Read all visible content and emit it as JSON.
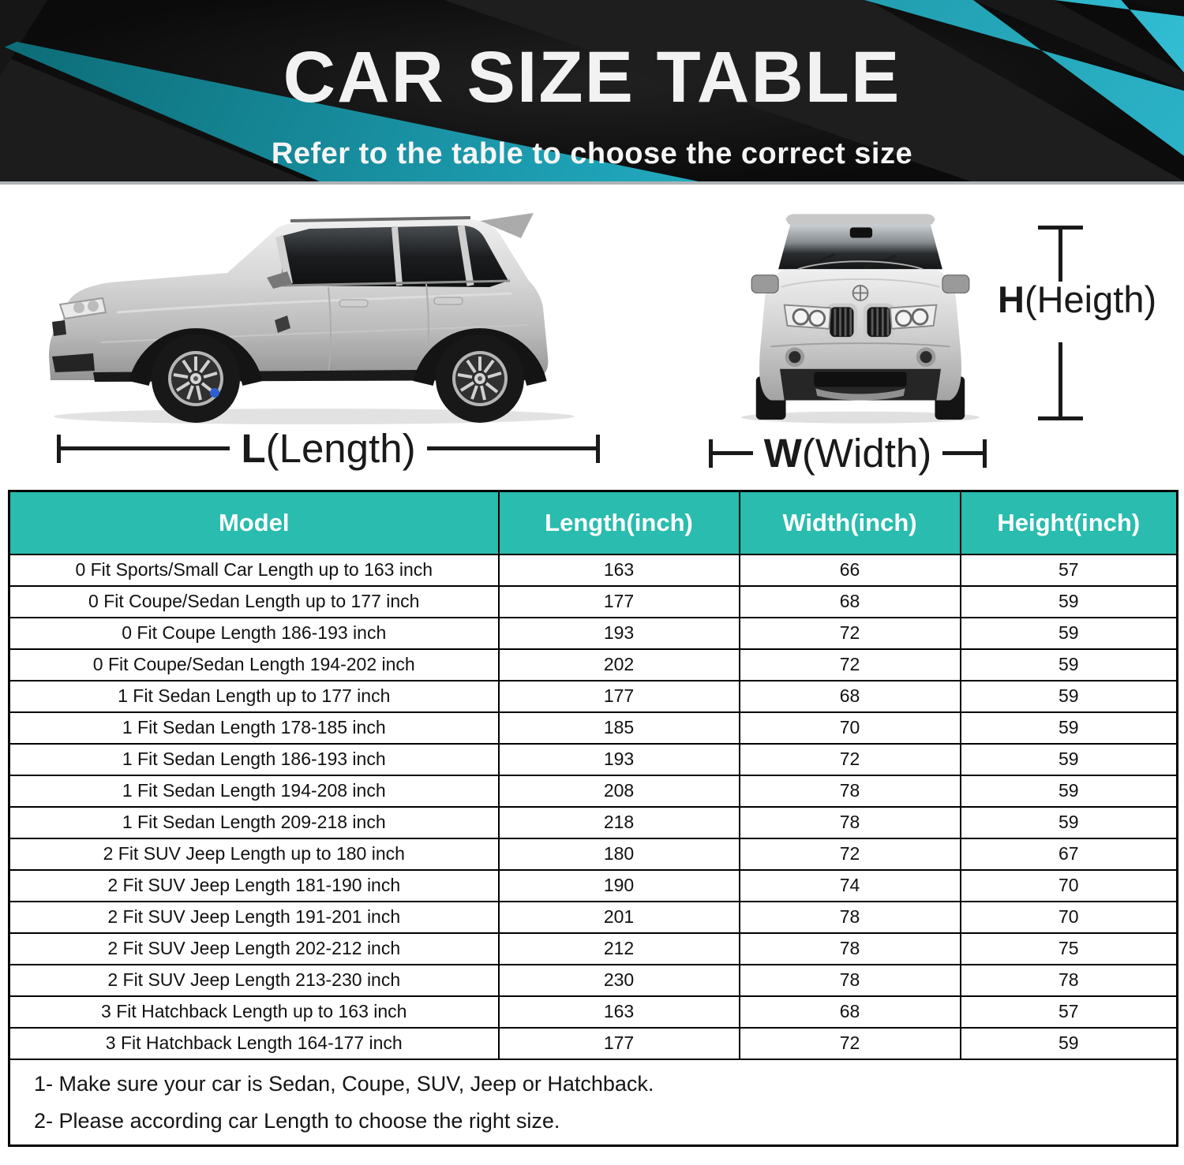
{
  "banner": {
    "title": "CAR SIZE TABLE",
    "subtitle": "Refer to the table to choose the correct size"
  },
  "dimensions": {
    "length": {
      "letter": "L",
      "rest": "(Length)"
    },
    "width": {
      "letter": "W",
      "rest": "(Width)"
    },
    "height": {
      "letter": "H",
      "rest": "(Heigth)"
    }
  },
  "size_table": {
    "headers": [
      "Model",
      "Length(inch)",
      "Width(inch)",
      "Height(inch)"
    ],
    "rows": [
      {
        "model": "0 Fit Sports/Small Car Length up to 163 inch",
        "length": "163",
        "width": "66",
        "height": "57"
      },
      {
        "model": "0 Fit Coupe/Sedan Length up to 177 inch",
        "length": "177",
        "width": "68",
        "height": "59"
      },
      {
        "model": "0 Fit Coupe Length 186-193 inch",
        "length": "193",
        "width": "72",
        "height": "59"
      },
      {
        "model": "0 Fit Coupe/Sedan Length 194-202 inch",
        "length": "202",
        "width": "72",
        "height": "59"
      },
      {
        "model": "1 Fit Sedan Length up to 177 inch",
        "length": "177",
        "width": "68",
        "height": "59"
      },
      {
        "model": "1 Fit Sedan Length 178-185 inch",
        "length": "185",
        "width": "70",
        "height": "59"
      },
      {
        "model": "1 Fit Sedan Length 186-193 inch",
        "length": "193",
        "width": "72",
        "height": "59"
      },
      {
        "model": "1 Fit Sedan Length 194-208 inch",
        "length": "208",
        "width": "78",
        "height": "59"
      },
      {
        "model": "1 Fit Sedan Length 209-218 inch",
        "length": "218",
        "width": "78",
        "height": "59"
      },
      {
        "model": "2 Fit SUV Jeep Length up to 180 inch",
        "length": "180",
        "width": "72",
        "height": "67"
      },
      {
        "model": "2 Fit SUV Jeep Length 181-190 inch",
        "length": "190",
        "width": "74",
        "height": "70"
      },
      {
        "model": "2 Fit SUV Jeep Length 191-201 inch",
        "length": "201",
        "width": "78",
        "height": "70"
      },
      {
        "model": "2 Fit SUV Jeep Length 202-212 inch",
        "length": "212",
        "width": "78",
        "height": "75"
      },
      {
        "model": "2 Fit SUV Jeep Length 213-230 inch",
        "length": "230",
        "width": "78",
        "height": "78"
      },
      {
        "model": "3 Fit Hatchback Length up to 163 inch",
        "length": "163",
        "width": "68",
        "height": "57"
      },
      {
        "model": "3 Fit Hatchback Length 164-177 inch",
        "length": "177",
        "width": "72",
        "height": "59"
      }
    ],
    "notes": [
      "1- Make sure your car is Sedan, Coupe, SUV, Jeep or Hatchback.",
      "2- Please according car Length to choose the right size."
    ]
  },
  "colors": {
    "table_header_teal": "#2abcae",
    "banner_accent_cyan": "#35c3da",
    "banner_background": "#0d0d0d",
    "dimension_line": "#1a1a1a"
  }
}
